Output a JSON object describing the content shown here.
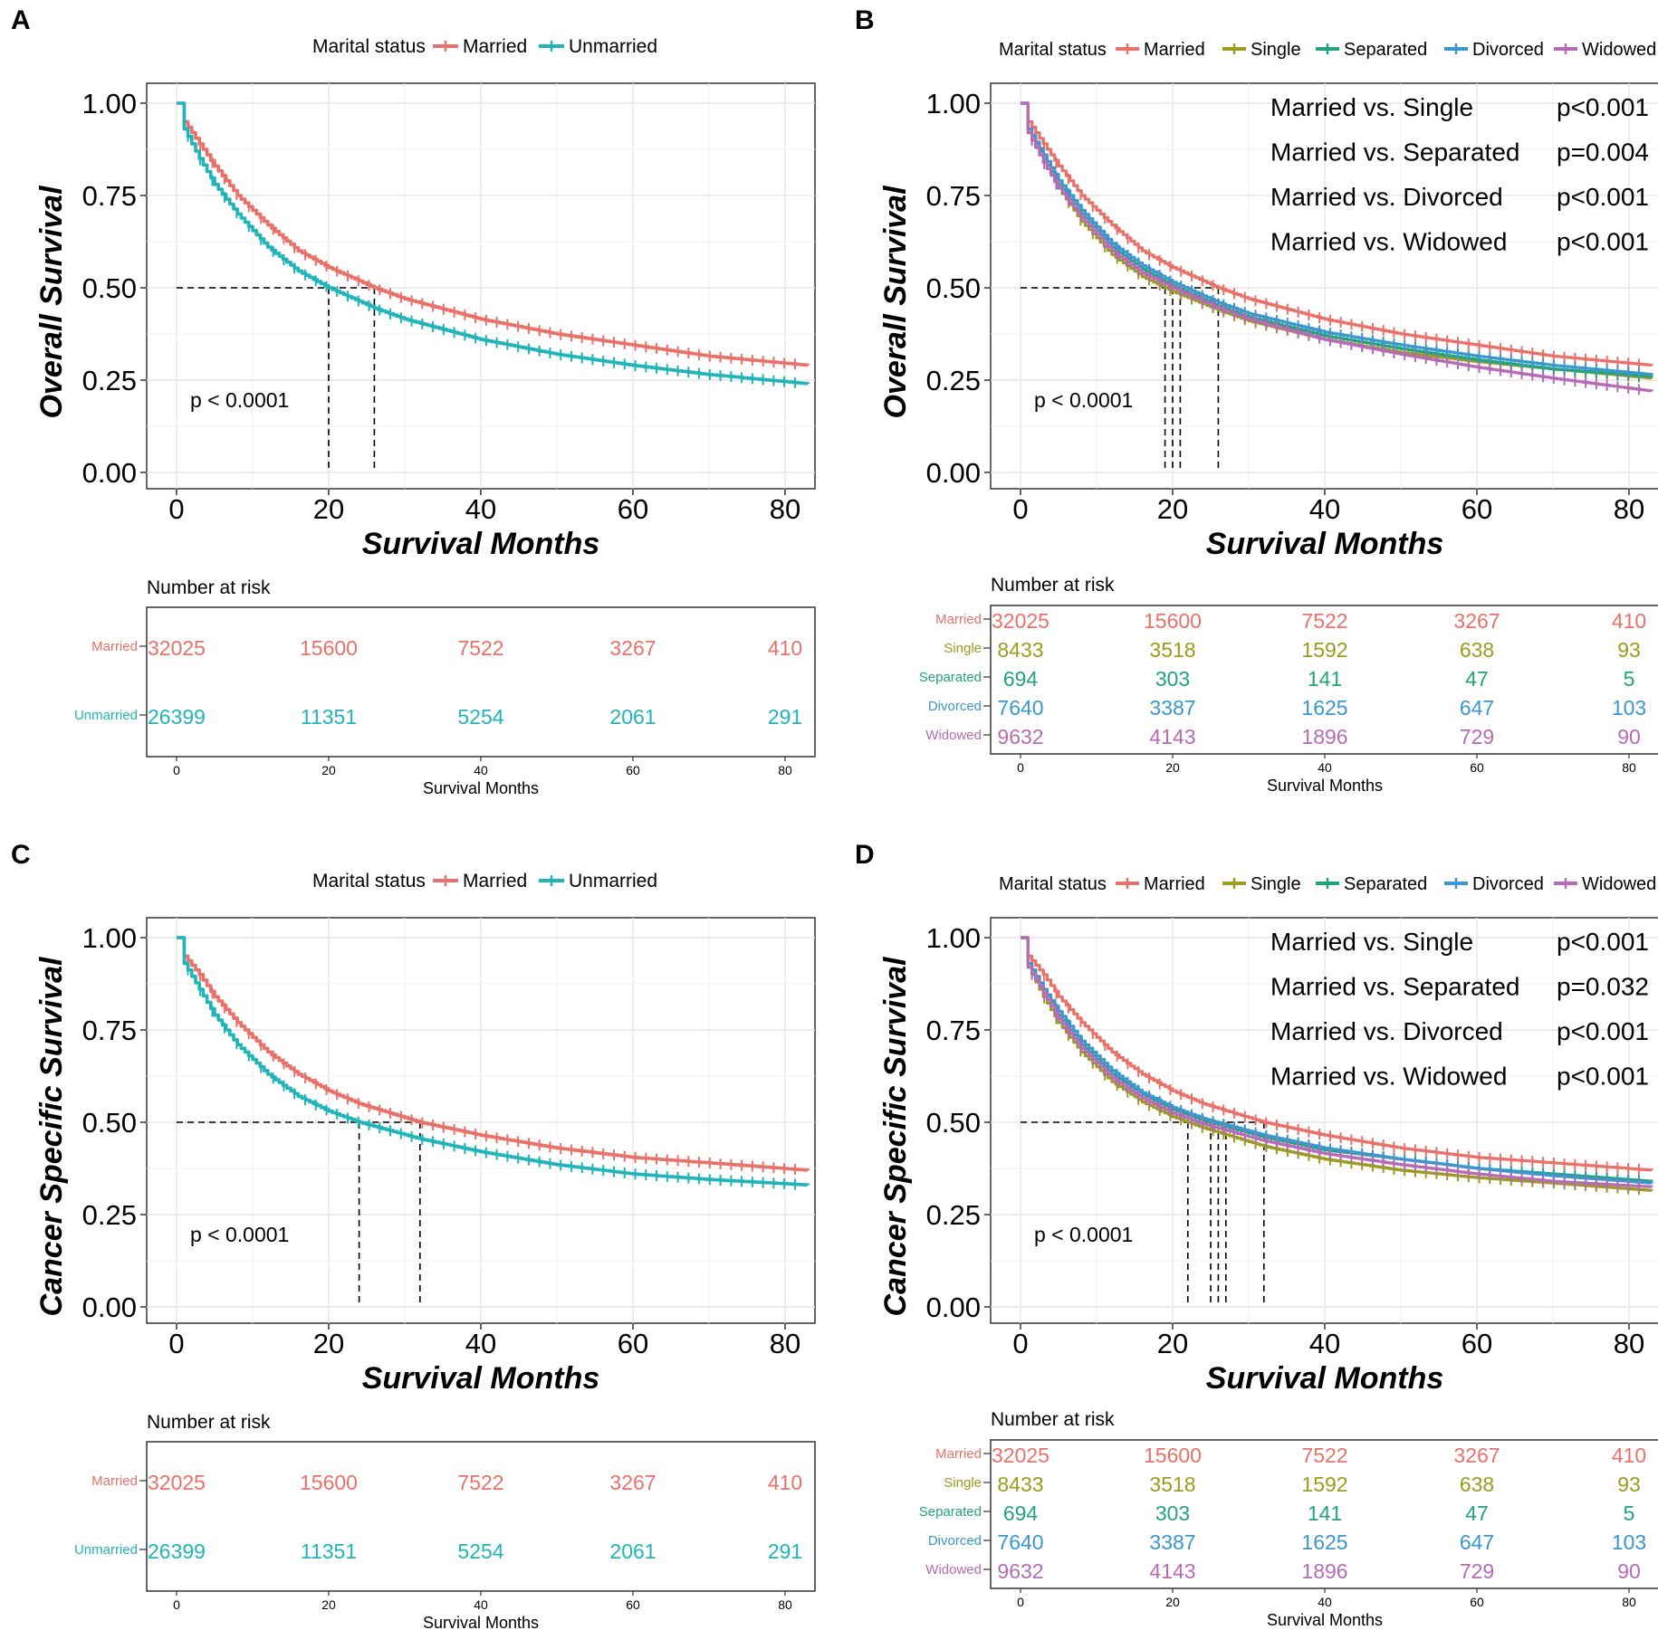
{
  "colors": {
    "married": "#e8726a",
    "unmarried": "#21b4b9",
    "single": "#9c9c1c",
    "separated": "#23a37c",
    "divorced": "#3b97cf",
    "widowed": "#b66bb7"
  },
  "chart_data": [
    {
      "type": "line",
      "panel": "A",
      "legend_title": "Marital status",
      "ylabel": "Overall Survival",
      "xlabel": "Survival Months",
      "xlim": [
        0,
        83
      ],
      "ylim": [
        0,
        1
      ],
      "x_ticks": [
        0,
        20,
        40,
        60,
        80
      ],
      "y_ticks": [
        "0.00",
        "0.25",
        "0.50",
        "0.75",
        "1.00"
      ],
      "pvalue": "p < 0.0001",
      "median_lines": [
        20,
        26
      ],
      "series": [
        {
          "name": "Married",
          "color_key": "married",
          "x": [
            0,
            1,
            3,
            5,
            8,
            12,
            16,
            20,
            26,
            30,
            40,
            50,
            60,
            70,
            83
          ],
          "y": [
            1.0,
            0.95,
            0.89,
            0.83,
            0.75,
            0.67,
            0.6,
            0.555,
            0.5,
            0.47,
            0.415,
            0.375,
            0.345,
            0.315,
            0.29
          ]
        },
        {
          "name": "Unmarried",
          "color_key": "unmarried",
          "x": [
            0,
            1,
            3,
            5,
            8,
            12,
            16,
            20,
            26,
            30,
            40,
            50,
            60,
            70,
            83
          ],
          "y": [
            1.0,
            0.93,
            0.85,
            0.78,
            0.7,
            0.61,
            0.545,
            0.5,
            0.445,
            0.415,
            0.36,
            0.32,
            0.29,
            0.265,
            0.24
          ]
        }
      ],
      "risk_table": {
        "title": "Number at risk",
        "xlabel": "Survival Months",
        "rows": [
          {
            "label": "Married",
            "color_key": "married",
            "values": [
              "32025",
              "15600",
              "7522",
              "3267",
              "410"
            ]
          },
          {
            "label": "Unmarried",
            "color_key": "unmarried",
            "values": [
              "26399",
              "11351",
              "5254",
              "2061",
              "291"
            ]
          }
        ]
      }
    },
    {
      "type": "line",
      "panel": "B",
      "legend_title": "Marital status",
      "ylabel": "Overall Survival",
      "xlabel": "Survival Months",
      "xlim": [
        0,
        83
      ],
      "ylim": [
        0,
        1
      ],
      "x_ticks": [
        0,
        20,
        40,
        60,
        80
      ],
      "y_ticks": [
        "0.00",
        "0.25",
        "0.50",
        "0.75",
        "1.00"
      ],
      "pvalue": "p < 0.0001",
      "median_lines": [
        19,
        20,
        21,
        26
      ],
      "comparisons": [
        {
          "label": "Married vs. Single",
          "p": "p<0.001"
        },
        {
          "label": "Married vs. Separated",
          "p": "p=0.004"
        },
        {
          "label": "Married vs. Divorced",
          "p": "p<0.001"
        },
        {
          "label": "Married vs. Widowed",
          "p": "p<0.001"
        }
      ],
      "series": [
        {
          "name": "Married",
          "color_key": "married",
          "x": [
            0,
            1,
            3,
            5,
            8,
            12,
            16,
            20,
            26,
            30,
            40,
            50,
            60,
            70,
            83
          ],
          "y": [
            1.0,
            0.95,
            0.89,
            0.83,
            0.75,
            0.67,
            0.6,
            0.555,
            0.5,
            0.47,
            0.415,
            0.375,
            0.345,
            0.315,
            0.29
          ]
        },
        {
          "name": "Single",
          "color_key": "single",
          "x": [
            0,
            1,
            3,
            5,
            8,
            12,
            16,
            20,
            26,
            30,
            40,
            50,
            60,
            70,
            83
          ],
          "y": [
            1.0,
            0.92,
            0.84,
            0.77,
            0.68,
            0.59,
            0.53,
            0.49,
            0.44,
            0.41,
            0.36,
            0.325,
            0.3,
            0.28,
            0.255
          ]
        },
        {
          "name": "Separated",
          "color_key": "separated",
          "x": [
            0,
            1,
            3,
            5,
            8,
            12,
            16,
            20,
            26,
            30,
            40,
            50,
            60,
            70,
            83
          ],
          "y": [
            1.0,
            0.93,
            0.85,
            0.78,
            0.7,
            0.61,
            0.55,
            0.505,
            0.45,
            0.42,
            0.37,
            0.335,
            0.305,
            0.28,
            0.26
          ]
        },
        {
          "name": "Divorced",
          "color_key": "divorced",
          "x": [
            0,
            1,
            3,
            5,
            8,
            12,
            16,
            20,
            26,
            30,
            40,
            50,
            60,
            70,
            83
          ],
          "y": [
            1.0,
            0.93,
            0.86,
            0.79,
            0.71,
            0.62,
            0.56,
            0.515,
            0.46,
            0.43,
            0.38,
            0.345,
            0.315,
            0.29,
            0.265
          ]
        },
        {
          "name": "Widowed",
          "color_key": "widowed",
          "x": [
            0,
            1,
            3,
            5,
            8,
            12,
            16,
            20,
            26,
            30,
            40,
            50,
            60,
            70,
            83
          ],
          "y": [
            1.0,
            0.92,
            0.84,
            0.77,
            0.69,
            0.6,
            0.54,
            0.5,
            0.445,
            0.415,
            0.36,
            0.32,
            0.285,
            0.255,
            0.22
          ]
        }
      ],
      "risk_table": {
        "title": "Number at risk",
        "xlabel": "Survival Months",
        "rows": [
          {
            "label": "Married",
            "color_key": "married",
            "values": [
              "32025",
              "15600",
              "7522",
              "3267",
              "410"
            ]
          },
          {
            "label": "Single",
            "color_key": "single",
            "values": [
              "8433",
              "3518",
              "1592",
              "638",
              "93"
            ]
          },
          {
            "label": "Separated",
            "color_key": "separated",
            "values": [
              "694",
              "303",
              "141",
              "47",
              "5"
            ]
          },
          {
            "label": "Divorced",
            "color_key": "divorced",
            "values": [
              "7640",
              "3387",
              "1625",
              "647",
              "103"
            ]
          },
          {
            "label": "Widowed",
            "color_key": "widowed",
            "values": [
              "9632",
              "4143",
              "1896",
              "729",
              "90"
            ]
          }
        ]
      }
    },
    {
      "type": "line",
      "panel": "C",
      "legend_title": "Marital status",
      "ylabel": "Cancer Specific Survival",
      "xlabel": "Survival Months",
      "xlim": [
        0,
        83
      ],
      "ylim": [
        0,
        1
      ],
      "x_ticks": [
        0,
        20,
        40,
        60,
        80
      ],
      "y_ticks": [
        "0.00",
        "0.25",
        "0.50",
        "0.75",
        "1.00"
      ],
      "pvalue": "p < 0.0001",
      "median_lines": [
        24,
        32
      ],
      "series": [
        {
          "name": "Married",
          "color_key": "married",
          "x": [
            0,
            1,
            3,
            5,
            8,
            12,
            16,
            20,
            24,
            32,
            40,
            50,
            60,
            70,
            83
          ],
          "y": [
            1.0,
            0.95,
            0.9,
            0.84,
            0.77,
            0.69,
            0.63,
            0.585,
            0.55,
            0.5,
            0.465,
            0.43,
            0.405,
            0.39,
            0.37
          ]
        },
        {
          "name": "Unmarried",
          "color_key": "unmarried",
          "x": [
            0,
            1,
            3,
            5,
            8,
            12,
            16,
            20,
            24,
            32,
            40,
            50,
            60,
            70,
            83
          ],
          "y": [
            1.0,
            0.93,
            0.86,
            0.79,
            0.71,
            0.63,
            0.57,
            0.53,
            0.5,
            0.455,
            0.42,
            0.385,
            0.36,
            0.345,
            0.33
          ]
        }
      ],
      "risk_table": {
        "title": "Number at risk",
        "xlabel": "Survival Months",
        "rows": [
          {
            "label": "Married",
            "color_key": "married",
            "values": [
              "32025",
              "15600",
              "7522",
              "3267",
              "410"
            ]
          },
          {
            "label": "Unmarried",
            "color_key": "unmarried",
            "values": [
              "26399",
              "11351",
              "5254",
              "2061",
              "291"
            ]
          }
        ]
      }
    },
    {
      "type": "line",
      "panel": "D",
      "legend_title": "Marital status",
      "ylabel": "Cancer Specific Survival",
      "xlabel": "Survival Months",
      "xlim": [
        0,
        83
      ],
      "ylim": [
        0,
        1
      ],
      "x_ticks": [
        0,
        20,
        40,
        60,
        80
      ],
      "y_ticks": [
        "0.00",
        "0.25",
        "0.50",
        "0.75",
        "1.00"
      ],
      "pvalue": "p < 0.0001",
      "median_lines": [
        22,
        25,
        26,
        27,
        32
      ],
      "comparisons": [
        {
          "label": "Married vs. Single",
          "p": "p<0.001"
        },
        {
          "label": "Married vs. Separated",
          "p": "p=0.032"
        },
        {
          "label": "Married vs. Divorced",
          "p": "p<0.001"
        },
        {
          "label": "Married vs. Widowed",
          "p": "p<0.001"
        }
      ],
      "series": [
        {
          "name": "Married",
          "color_key": "married",
          "x": [
            0,
            1,
            3,
            5,
            8,
            12,
            16,
            20,
            24,
            32,
            40,
            50,
            60,
            70,
            83
          ],
          "y": [
            1.0,
            0.95,
            0.9,
            0.84,
            0.77,
            0.69,
            0.63,
            0.585,
            0.55,
            0.5,
            0.465,
            0.43,
            0.405,
            0.39,
            0.37
          ]
        },
        {
          "name": "Single",
          "color_key": "single",
          "x": [
            0,
            1,
            3,
            5,
            8,
            12,
            16,
            20,
            24,
            32,
            40,
            50,
            60,
            70,
            83
          ],
          "y": [
            1.0,
            0.92,
            0.84,
            0.77,
            0.69,
            0.61,
            0.555,
            0.515,
            0.485,
            0.435,
            0.4,
            0.37,
            0.35,
            0.335,
            0.315
          ]
        },
        {
          "name": "Separated",
          "color_key": "separated",
          "x": [
            0,
            1,
            3,
            5,
            8,
            12,
            16,
            20,
            24,
            32,
            40,
            50,
            60,
            70,
            83
          ],
          "y": [
            1.0,
            0.93,
            0.86,
            0.79,
            0.71,
            0.63,
            0.575,
            0.535,
            0.505,
            0.46,
            0.425,
            0.4,
            0.375,
            0.36,
            0.34
          ]
        },
        {
          "name": "Divorced",
          "color_key": "divorced",
          "x": [
            0,
            1,
            3,
            5,
            8,
            12,
            16,
            20,
            24,
            32,
            40,
            50,
            60,
            70,
            83
          ],
          "y": [
            1.0,
            0.93,
            0.86,
            0.8,
            0.72,
            0.64,
            0.58,
            0.54,
            0.51,
            0.465,
            0.43,
            0.4,
            0.375,
            0.355,
            0.335
          ]
        },
        {
          "name": "Widowed",
          "color_key": "widowed",
          "x": [
            0,
            1,
            3,
            5,
            8,
            12,
            16,
            20,
            24,
            32,
            40,
            50,
            60,
            70,
            83
          ],
          "y": [
            1.0,
            0.92,
            0.85,
            0.78,
            0.7,
            0.62,
            0.565,
            0.525,
            0.495,
            0.45,
            0.415,
            0.385,
            0.36,
            0.34,
            0.325
          ]
        }
      ],
      "risk_table": {
        "title": "Number at risk",
        "xlabel": "Survival Months",
        "rows": [
          {
            "label": "Married",
            "color_key": "married",
            "values": [
              "32025",
              "15600",
              "7522",
              "3267",
              "410"
            ]
          },
          {
            "label": "Single",
            "color_key": "single",
            "values": [
              "8433",
              "3518",
              "1592",
              "638",
              "93"
            ]
          },
          {
            "label": "Separated",
            "color_key": "separated",
            "values": [
              "694",
              "303",
              "141",
              "47",
              "5"
            ]
          },
          {
            "label": "Divorced",
            "color_key": "divorced",
            "values": [
              "7640",
              "3387",
              "1625",
              "647",
              "103"
            ]
          },
          {
            "label": "Widowed",
            "color_key": "widowed",
            "values": [
              "9632",
              "4143",
              "1896",
              "729",
              "90"
            ]
          }
        ]
      }
    }
  ]
}
